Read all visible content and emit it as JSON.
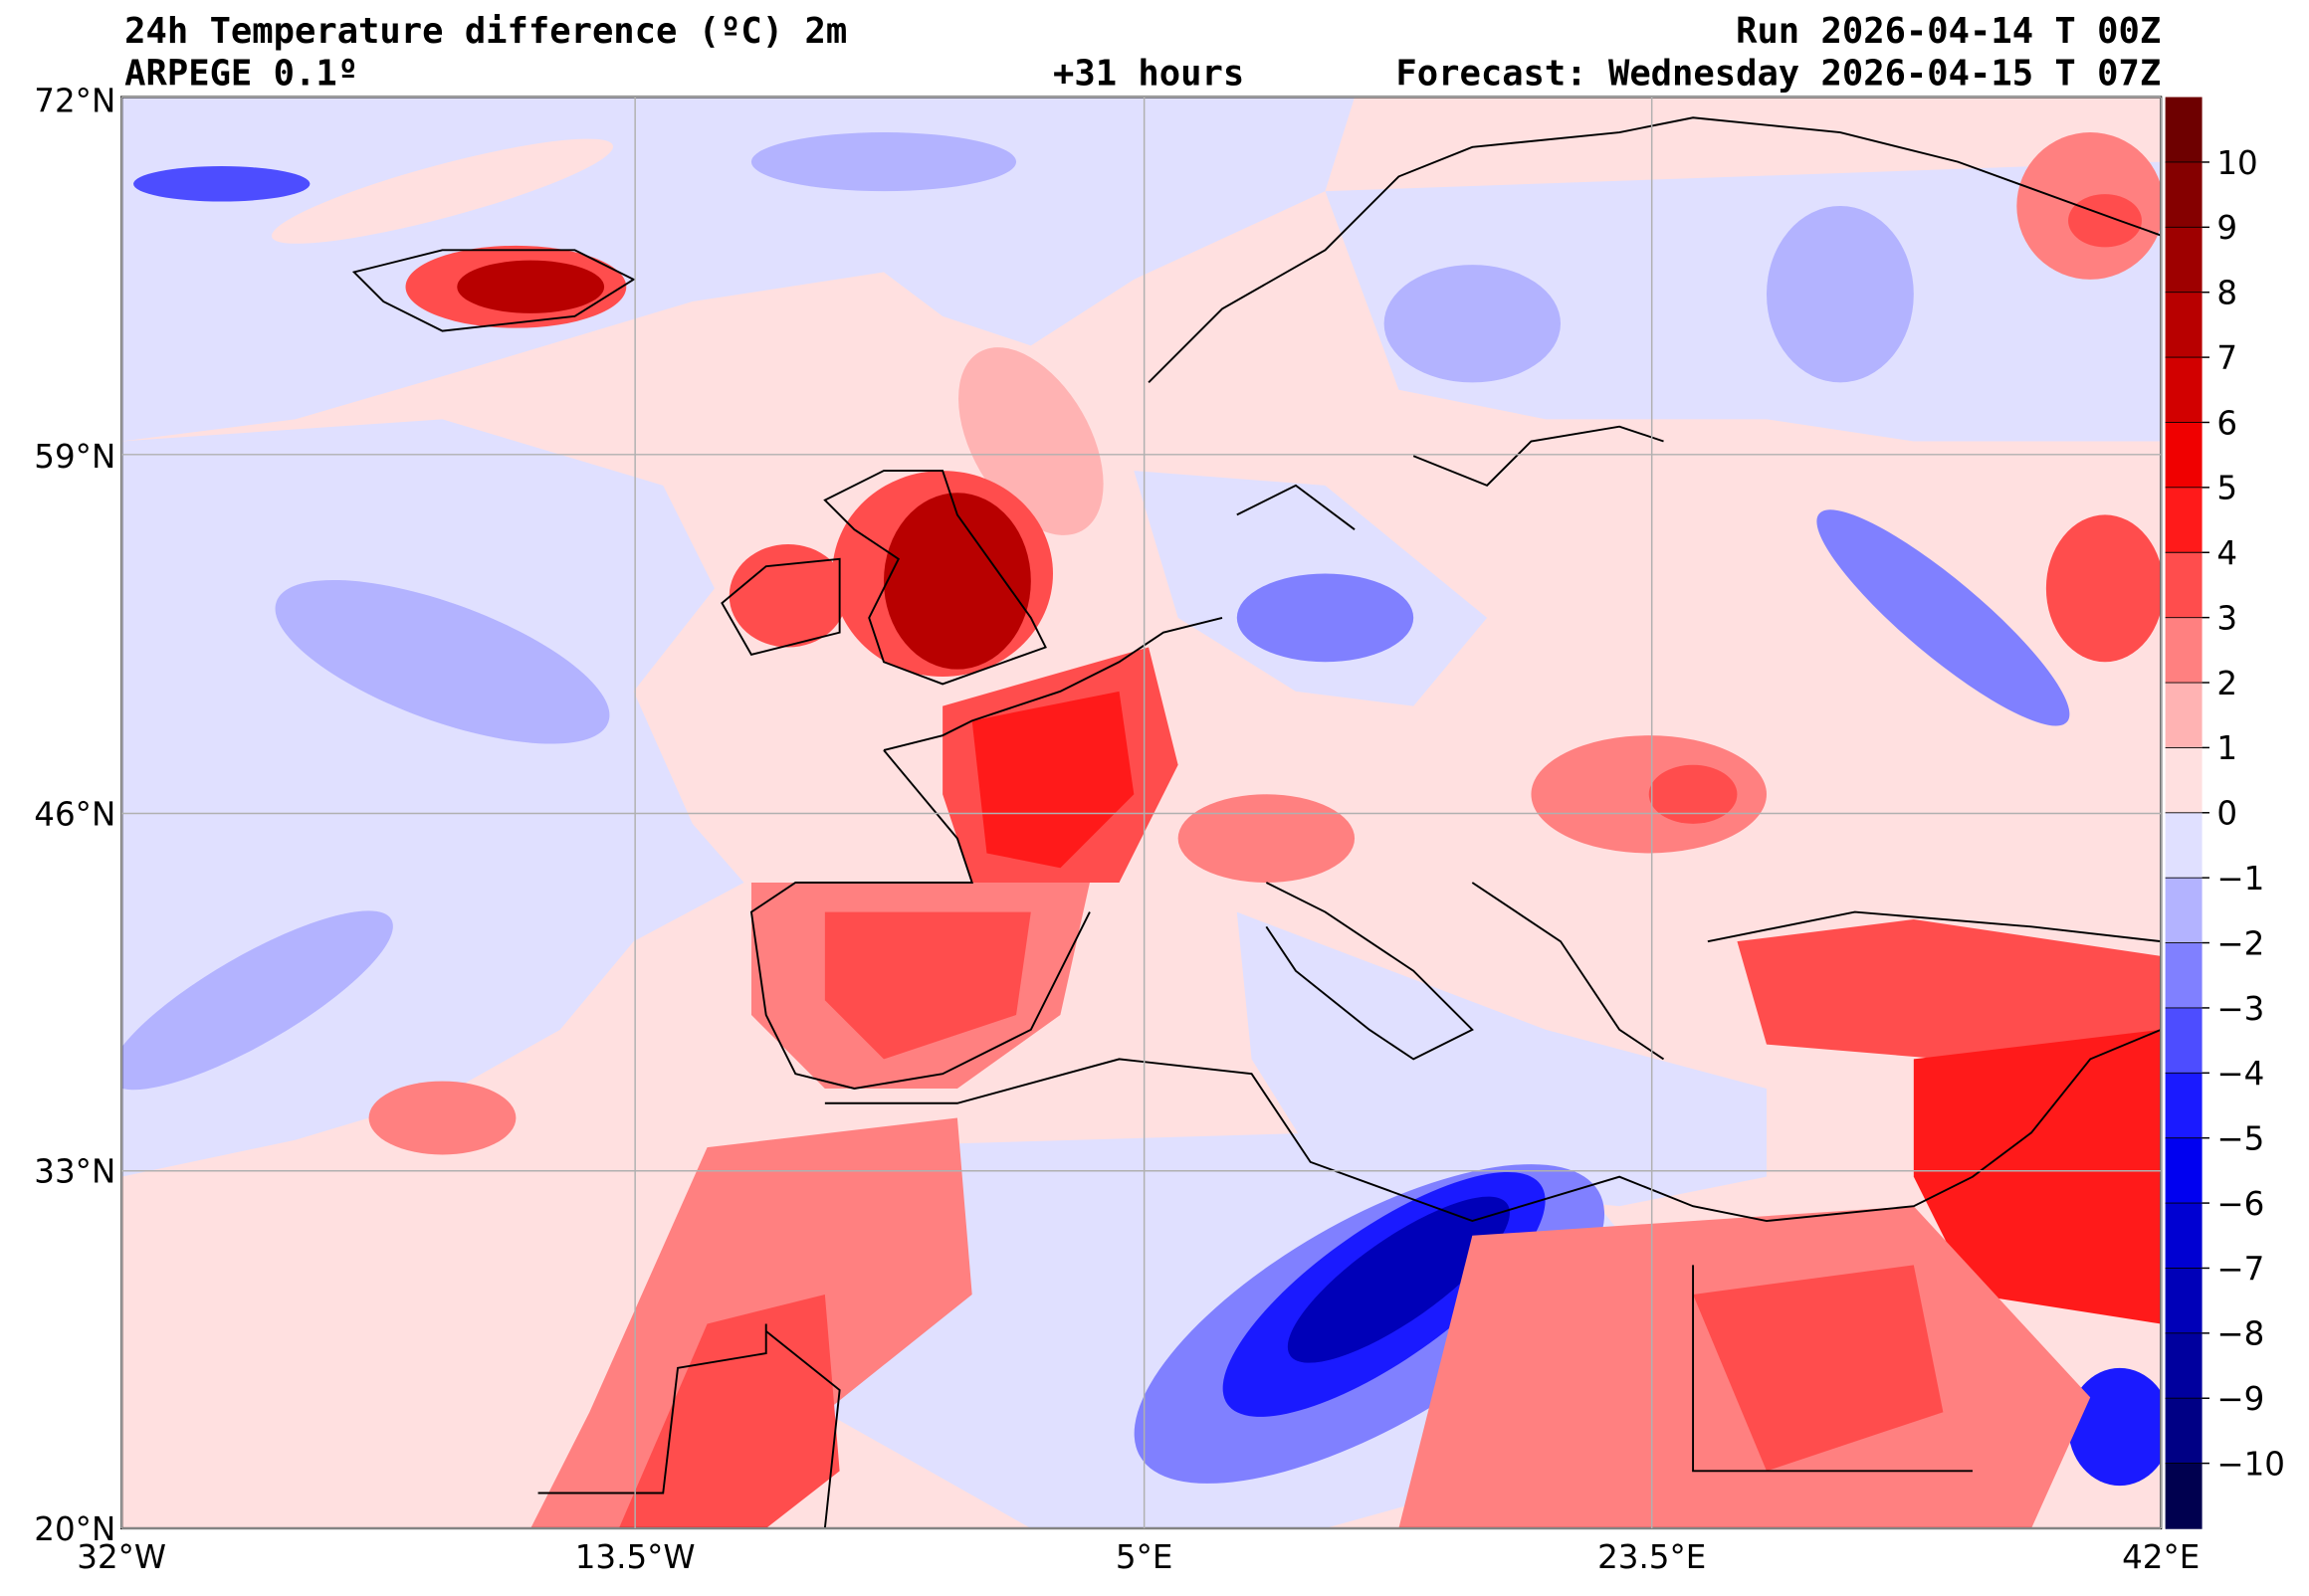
{
  "header": {
    "title": "24h Temperature difference (ºC) 2m",
    "model": "ARPEGE 0.1º",
    "lead_time": "+31 hours",
    "run": "Run 2026-04-14 T 00Z",
    "forecast": "Forecast: Wednesday 2026-04-15 T 07Z"
  },
  "axes": {
    "lat_labels": [
      "72°N",
      "59°N",
      "46°N",
      "33°N",
      "20°N"
    ],
    "lon_labels": [
      "32°W",
      "13.5°W",
      "5°E",
      "23.5°E",
      "42°E"
    ]
  },
  "colorbar": {
    "tick_labels": [
      "10",
      "9",
      "8",
      "7",
      "6",
      "5",
      "4",
      "3",
      "2",
      "1",
      "0",
      "−1",
      "−2",
      "−3",
      "−4",
      "−5",
      "−6",
      "−7",
      "−8",
      "−9",
      "−10"
    ],
    "colors_top_to_bottom": [
      "#6e0000",
      "#850000",
      "#9e0000",
      "#b80000",
      "#d20000",
      "#f00000",
      "#ff1a1a",
      "#ff4d4d",
      "#ff8080",
      "#ffb3b3",
      "#ffe0e0",
      "#e0e0ff",
      "#b3b3ff",
      "#8080ff",
      "#4d4dff",
      "#1a1aff",
      "#0000f0",
      "#0000d2",
      "#0000b8",
      "#00009e",
      "#000085",
      "#00004f"
    ]
  },
  "chart_data": {
    "type": "heatmap",
    "title": "24h Temperature difference (ºC) 2m",
    "variable_units": "ºC",
    "lon_range": [
      -32,
      42
    ],
    "lat_range": [
      20,
      72
    ],
    "contour_levels": [
      -10,
      -9,
      -8,
      -7,
      -6,
      -5,
      -4,
      -3,
      -2,
      -1,
      0,
      1,
      2,
      3,
      4,
      5,
      6,
      7,
      8,
      9,
      10
    ]
  }
}
